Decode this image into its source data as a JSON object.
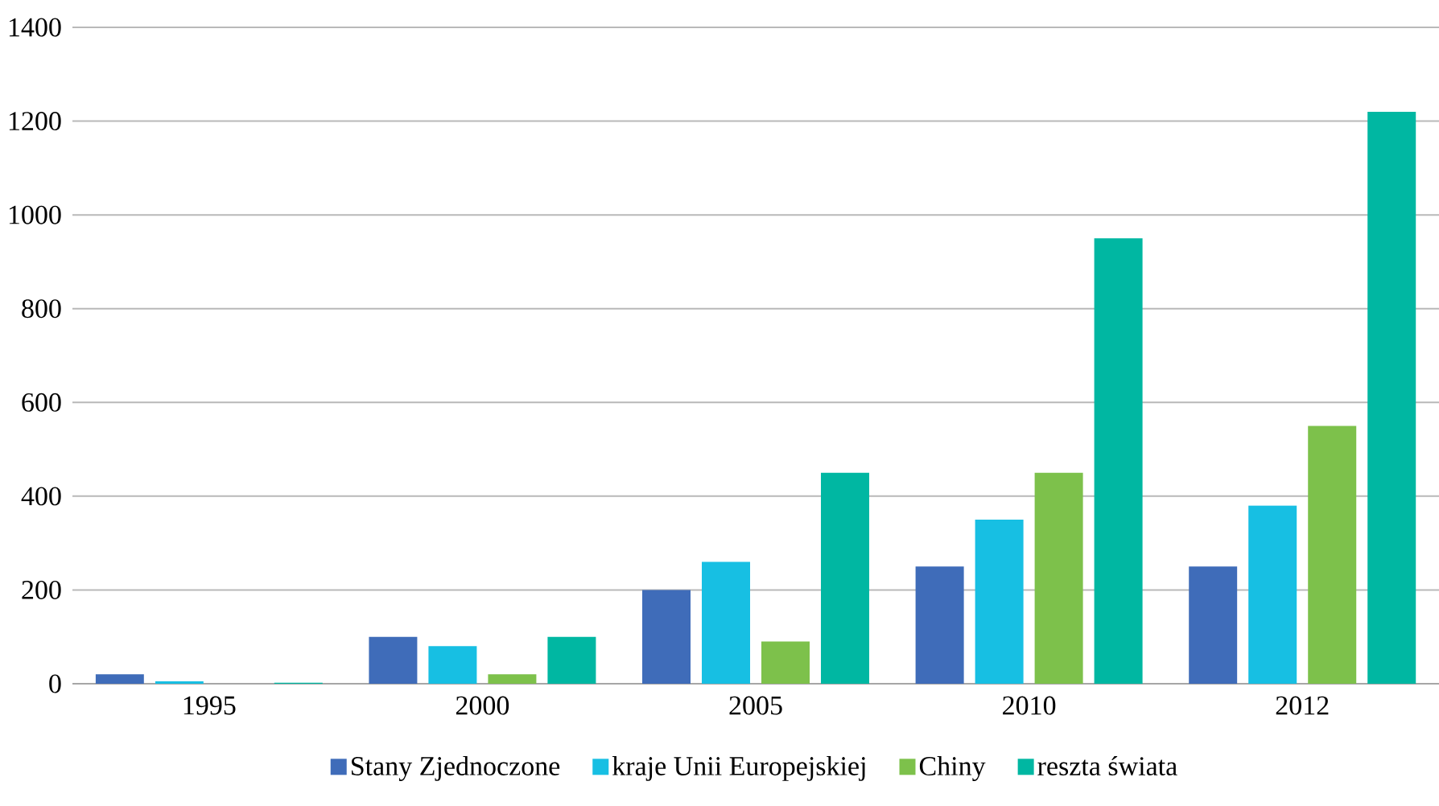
{
  "chart_data": {
    "type": "bar",
    "categories": [
      "1995",
      "2000",
      "2005",
      "2010",
      "2012"
    ],
    "series": [
      {
        "name": "Stany Zjednoczone",
        "color": "#3f6cb9",
        "values": [
          20,
          100,
          200,
          250,
          250
        ]
      },
      {
        "name": "kraje Unii Europejskiej",
        "color": "#17bfe3",
        "values": [
          5,
          80,
          260,
          350,
          380
        ]
      },
      {
        "name": "Chiny",
        "color": "#7dc14b",
        "values": [
          0,
          20,
          90,
          450,
          550
        ]
      },
      {
        "name": "reszta świata",
        "color": "#00b7a2",
        "values": [
          2,
          100,
          450,
          950,
          1220
        ]
      }
    ],
    "ylim": [
      0,
      1400
    ],
    "yticks": [
      0,
      200,
      400,
      600,
      800,
      1000,
      1200,
      1400
    ],
    "grid": "y",
    "legend": "bottom"
  }
}
